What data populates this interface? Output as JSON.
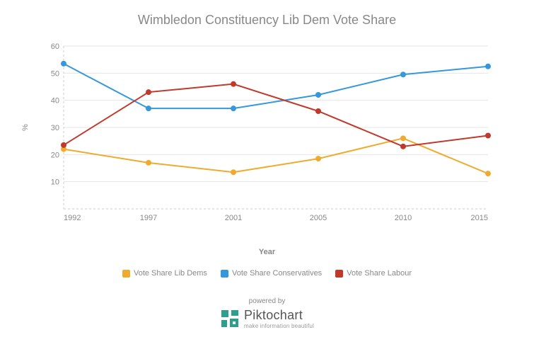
{
  "title": "Wimbledon Constituency Lib Dem Vote Share",
  "title_fontsize": 18,
  "title_color": "#888888",
  "y_axis_label": "%",
  "x_axis_label": "Year",
  "background_color": "#ffffff",
  "grid_color": "#e5e5e5",
  "axis_dash_color": "#cccccc",
  "chart": {
    "type": "line",
    "x_categories": [
      "1992",
      "1997",
      "2001",
      "2005",
      "2010",
      "2015"
    ],
    "ylim": [
      0,
      60
    ],
    "ytick_step": 10,
    "yticks": [
      10,
      20,
      30,
      40,
      50,
      60
    ],
    "series": [
      {
        "name": "Vote Share Lib Dems",
        "color": "#f0ab2e",
        "values": [
          22,
          17,
          13.5,
          18.5,
          26,
          13
        ],
        "marker": "circle",
        "marker_size": 4,
        "line_width": 2
      },
      {
        "name": "Vote Share Conservatives",
        "color": "#3498db",
        "values": [
          53.5,
          37,
          37,
          42,
          49.5,
          52.5
        ],
        "marker": "circle",
        "marker_size": 4,
        "line_width": 2
      },
      {
        "name": "Vote Share Labour",
        "color": "#c0392b",
        "values": [
          23.5,
          43,
          46,
          36,
          23,
          27
        ],
        "marker": "circle",
        "marker_size": 4,
        "line_width": 2
      }
    ]
  },
  "legend": {
    "items": [
      {
        "label": "Vote Share Lib Dems",
        "swatch": "#f0ab2e"
      },
      {
        "label": "Vote Share Conservatives",
        "swatch": "#3498db"
      },
      {
        "label": "Vote Share Labour",
        "swatch": "#c0392b"
      }
    ]
  },
  "footer": {
    "powered_by": "powered by",
    "brand_name": "Piktochart",
    "brand_tagline": "make information beautiful",
    "logo_colors": {
      "fill": "#2e9e8f",
      "accent": "#9fd4cc"
    }
  }
}
